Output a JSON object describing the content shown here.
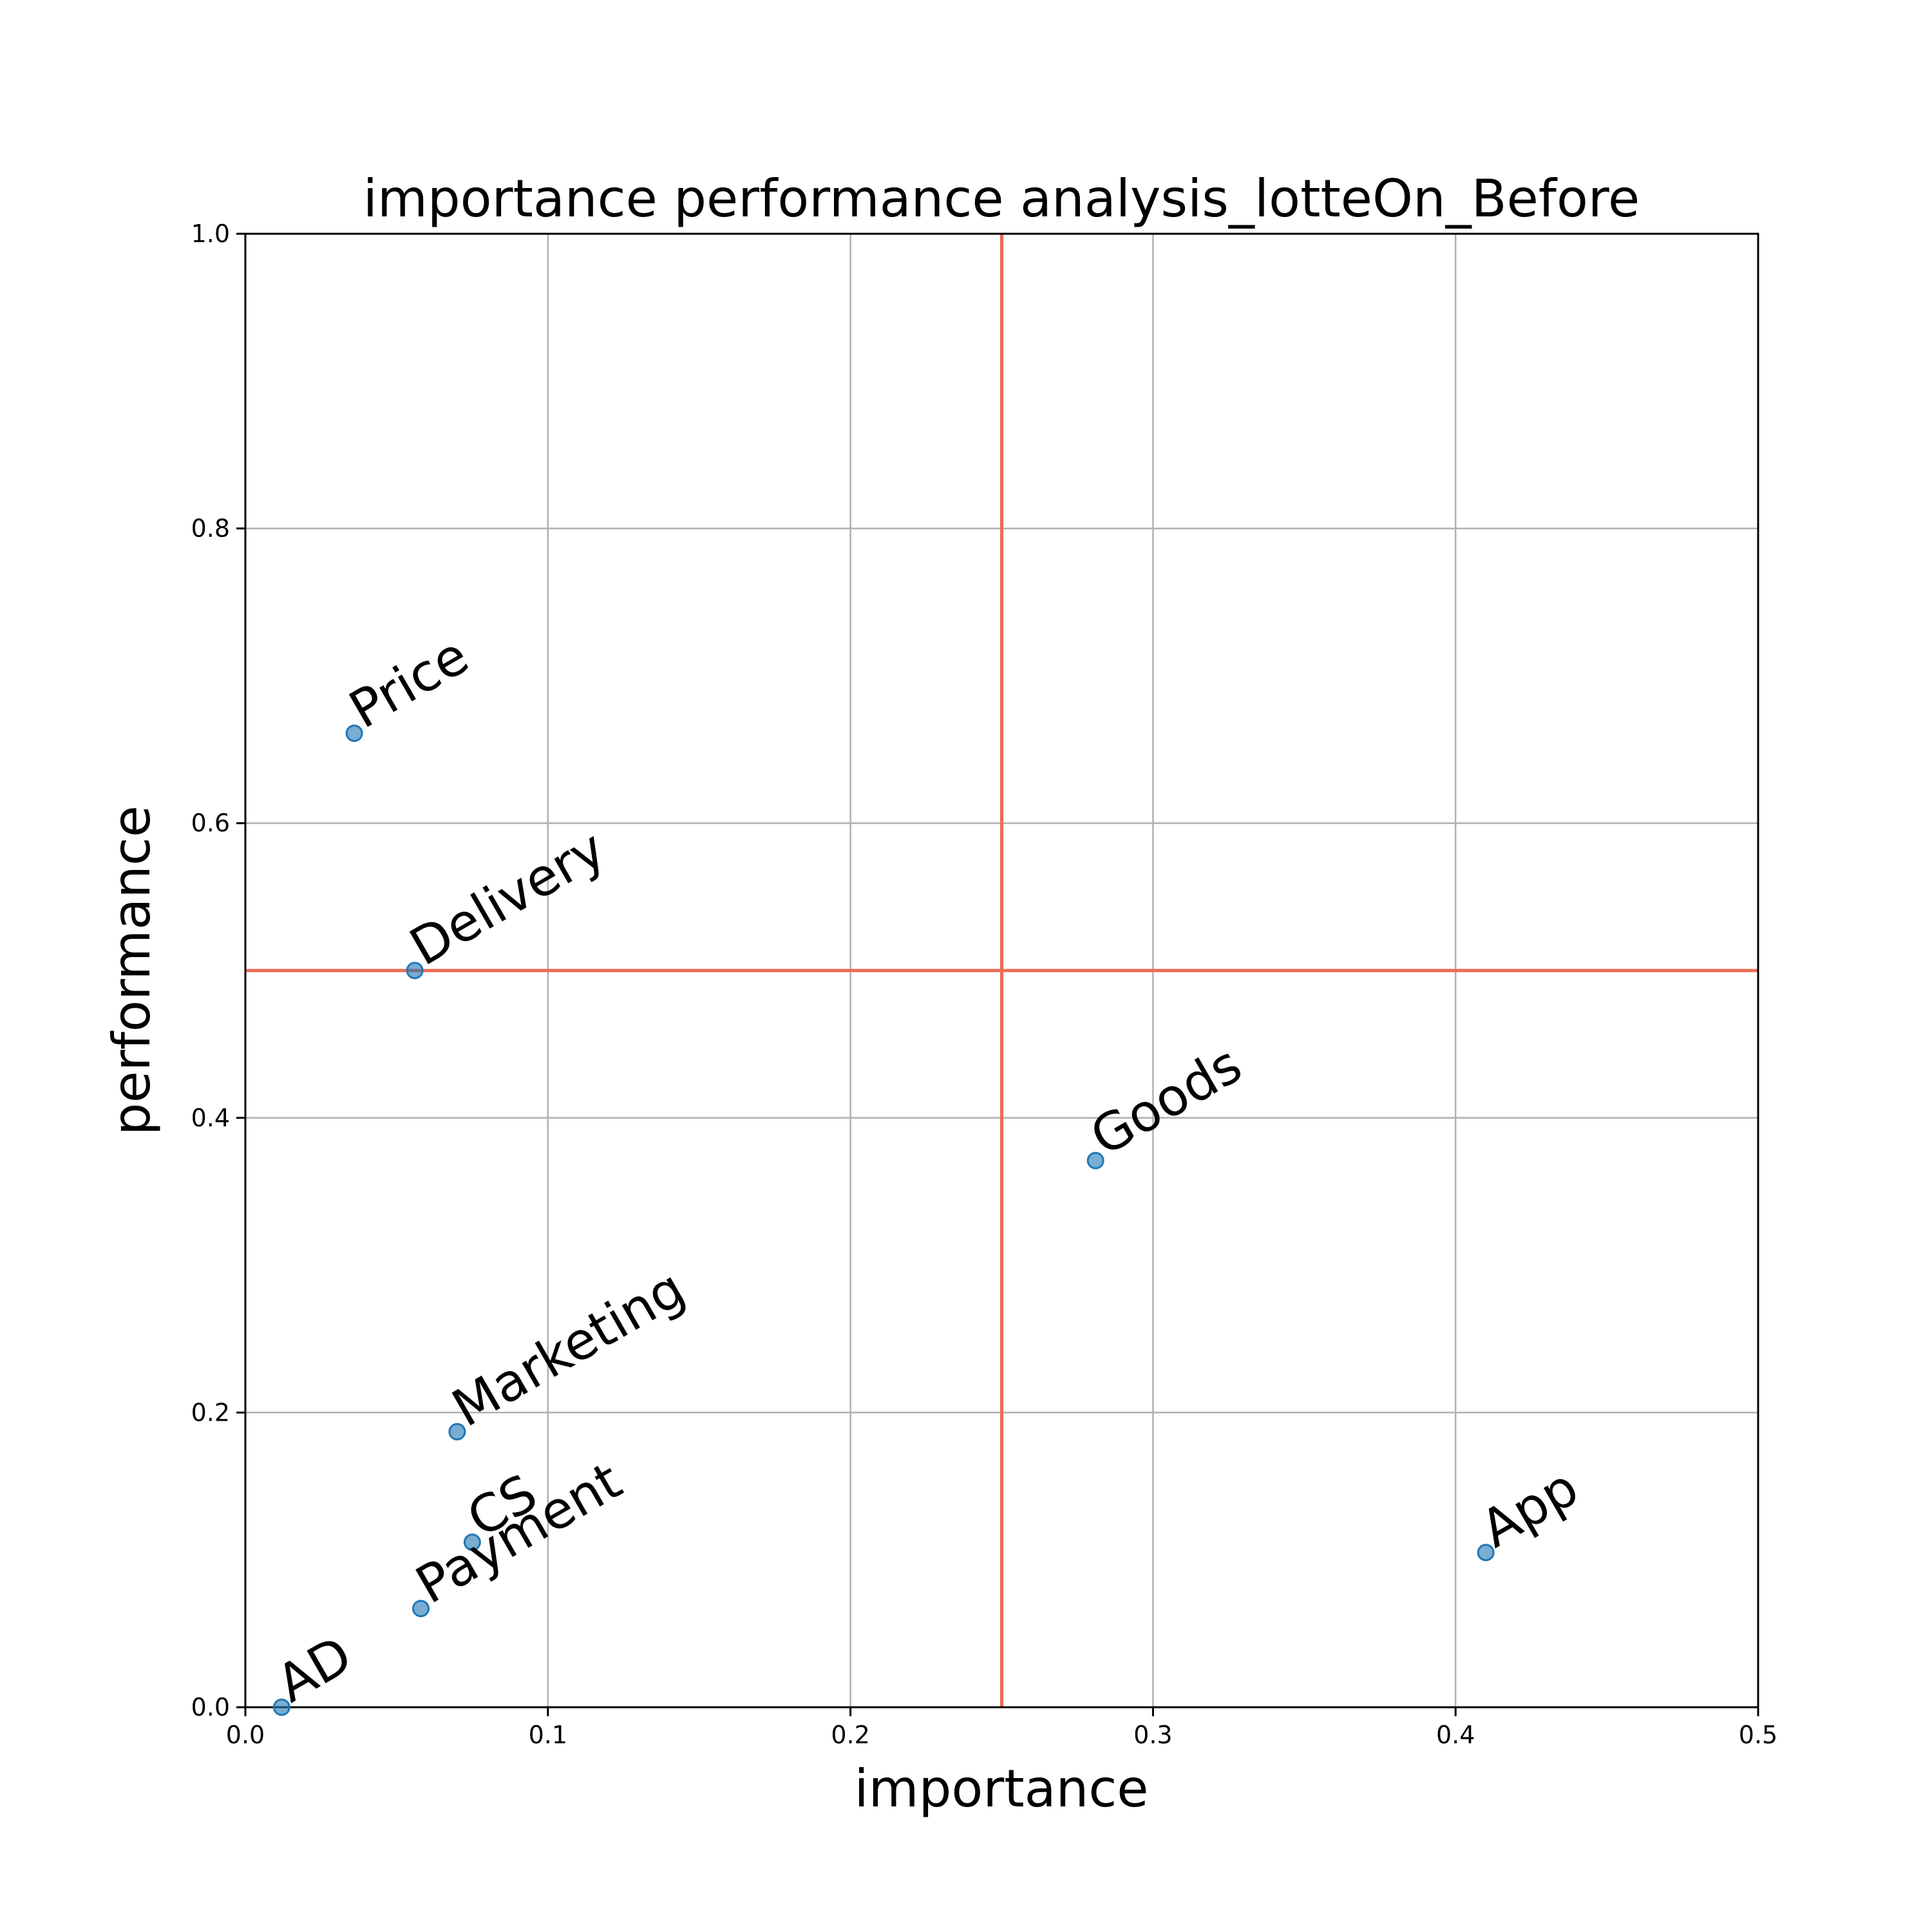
{
  "chart_data": {
    "type": "scatter",
    "title": "importance performance analysis_lotteOn_Before",
    "xlabel": "importance",
    "ylabel": "performance",
    "xlim": [
      0.0,
      0.5
    ],
    "ylim": [
      0.0,
      1.0
    ],
    "xticks": [
      "0.0",
      "0.1",
      "0.2",
      "0.3",
      "0.4",
      "0.5"
    ],
    "yticks": [
      "0.0",
      "0.2",
      "0.4",
      "0.6",
      "0.8",
      "1.0"
    ],
    "grid": true,
    "reference_lines": {
      "x": 0.25,
      "y": 0.5,
      "color": "#ee6a50"
    },
    "point_color": "#1f77b4",
    "points": [
      {
        "label": "Price",
        "x": 0.036,
        "y": 0.661
      },
      {
        "label": "Delivery",
        "x": 0.056,
        "y": 0.5
      },
      {
        "label": "Goods",
        "x": 0.281,
        "y": 0.371
      },
      {
        "label": "Marketing",
        "x": 0.07,
        "y": 0.187
      },
      {
        "label": "CS",
        "x": 0.075,
        "y": 0.112
      },
      {
        "label": "Payment",
        "x": 0.058,
        "y": 0.067
      },
      {
        "label": "AD",
        "x": 0.012,
        "y": 0.0
      },
      {
        "label": "App",
        "x": 0.41,
        "y": 0.105
      }
    ]
  }
}
